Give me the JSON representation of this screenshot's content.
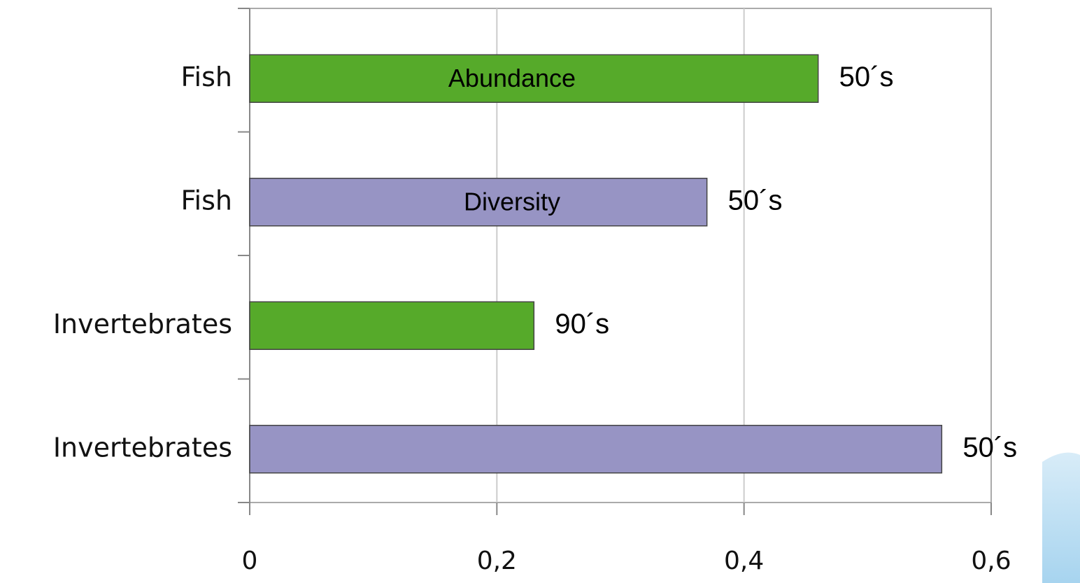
{
  "chart_data": {
    "type": "hbar",
    "categories": [
      "Fish",
      "Fish",
      "Invertebrates",
      "Invertebrates"
    ],
    "series": [
      {
        "name": "Abundance",
        "color": "#56aa2a",
        "values": [
          0.46,
          null,
          0.23,
          null
        ]
      },
      {
        "name": "Diversity",
        "color": "#9794c4",
        "values": [
          null,
          0.37,
          null,
          0.56
        ]
      }
    ],
    "bar_labels": [
      "50´s",
      "50´s",
      "90´s",
      "50´s"
    ],
    "xlim": [
      0,
      0.6
    ],
    "xticks": [
      0,
      {
        "value": 0.2,
        "label": "0,2"
      },
      {
        "value": 0.4,
        "label": "0,4"
      },
      {
        "value": 0.6,
        "label": "0,6"
      }
    ],
    "grid": true
  }
}
